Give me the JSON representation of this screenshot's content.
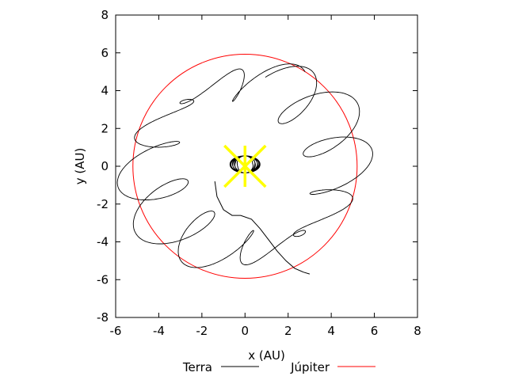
{
  "chart_data": {
    "type": "line",
    "title": "",
    "xlabel": "x (AU)",
    "ylabel": "y (AU)",
    "xlim": [
      -6,
      8
    ],
    "ylim": [
      -8,
      8
    ],
    "x_ticks": [
      -6,
      -4,
      -2,
      0,
      2,
      4,
      6,
      8
    ],
    "y_ticks": [
      -8,
      -6,
      -4,
      -2,
      0,
      2,
      4,
      6,
      8
    ],
    "grid": false,
    "legend_placement": "bottom-center",
    "series": [
      {
        "name": "Terra",
        "color": "#000000",
        "description_points": "trajectory",
        "x": [
          -1.4,
          -1.3,
          -1.0,
          -0.6,
          -0.2,
          0.3,
          0.7,
          1.1,
          1.5,
          1.9,
          2.3,
          2.7,
          3.0
        ],
        "y": [
          -0.8,
          -1.6,
          -2.3,
          -2.6,
          -2.6,
          -2.8,
          -3.3,
          -3.9,
          -4.5,
          -5.0,
          -5.4,
          -5.6,
          -5.7
        ]
      },
      {
        "name": "Júpiter",
        "color": "#ff0000",
        "orbit_radius": 5.2,
        "center": [
          0,
          0
        ]
      }
    ],
    "marker": {
      "x": 0,
      "y": 0,
      "color": "#ffff00"
    }
  }
}
